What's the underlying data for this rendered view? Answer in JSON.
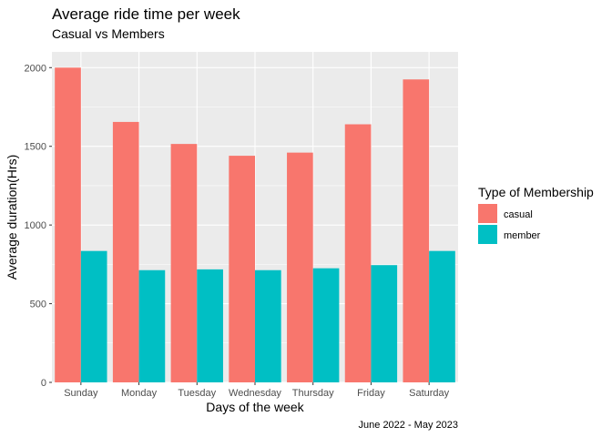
{
  "chart_data": {
    "type": "bar",
    "title": "Average ride time per week",
    "subtitle": "Casual vs Members",
    "xlabel": "Days of the week",
    "ylabel": "Average duration(Hrs)",
    "caption": "June 2022 - May 2023",
    "categories": [
      "Sunday",
      "Monday",
      "Tuesday",
      "Wednesday",
      "Thursday",
      "Friday",
      "Saturday"
    ],
    "series": [
      {
        "name": "casual",
        "color": "#F8766D",
        "values": [
          2000,
          1655,
          1515,
          1440,
          1460,
          1640,
          1925
        ]
      },
      {
        "name": "member",
        "color": "#00BFC4",
        "values": [
          835,
          713,
          718,
          713,
          725,
          745,
          835
        ]
      }
    ],
    "ylim": [
      0,
      2100
    ],
    "yticks": [
      0,
      500,
      1000,
      1500,
      2000
    ],
    "grid": true,
    "legend": {
      "title": "Type of Membership",
      "placement": "right"
    },
    "panel_background": "#EBEBEB",
    "grid_color": "#FFFFFF"
  }
}
